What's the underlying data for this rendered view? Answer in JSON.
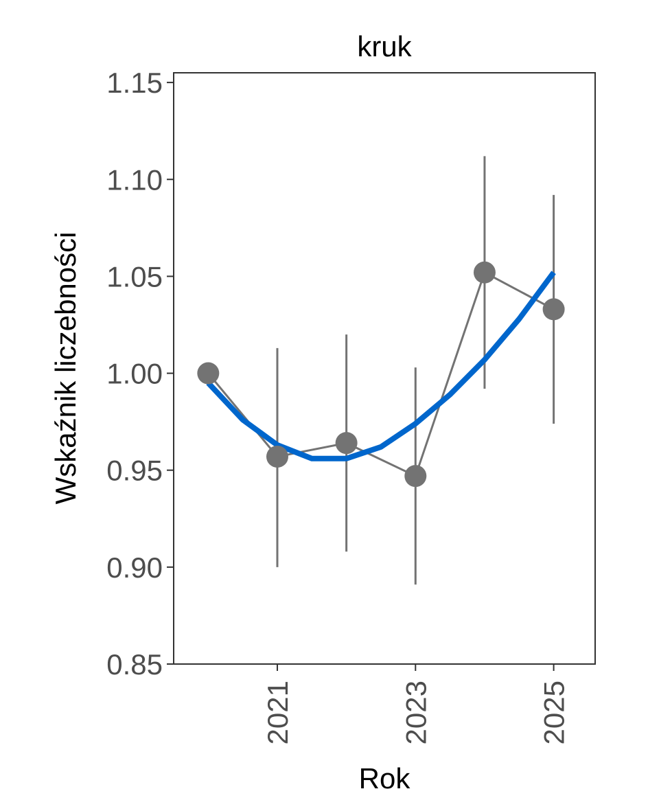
{
  "chart_data": {
    "type": "line",
    "title": "kruk",
    "xlabel": "Rok",
    "ylabel": "Wskaźnik liczebności",
    "xlim": [
      2019.5,
      2025.6
    ],
    "ylim": [
      0.85,
      1.155
    ],
    "x_ticks": [
      "2021",
      "2023",
      "2025"
    ],
    "y_ticks": [
      "0.85",
      "0.90",
      "0.95",
      "1.00",
      "1.05",
      "1.10",
      "1.15"
    ],
    "grid": false,
    "legend": "none",
    "colors": {
      "points": "#737373",
      "trend": "#0066cc",
      "axis": "#333333"
    },
    "series": [
      {
        "type": "points_with_error_bars",
        "x": [
          2020,
          2021,
          2022,
          2023,
          2024,
          2025
        ],
        "y": [
          1.0,
          0.957,
          0.964,
          0.947,
          1.052,
          1.033
        ],
        "lower": [
          1.0,
          0.9,
          0.908,
          0.891,
          0.992,
          0.974
        ],
        "upper": [
          1.0,
          1.013,
          1.02,
          1.003,
          1.112,
          1.092
        ]
      },
      {
        "type": "trend_curve",
        "x": [
          2020,
          2020.5,
          2021,
          2021.5,
          2022,
          2022.5,
          2023,
          2023.5,
          2024,
          2024.5,
          2025
        ],
        "y": [
          0.995,
          0.976,
          0.963,
          0.956,
          0.956,
          0.962,
          0.974,
          0.989,
          1.007,
          1.028,
          1.052
        ]
      }
    ]
  }
}
